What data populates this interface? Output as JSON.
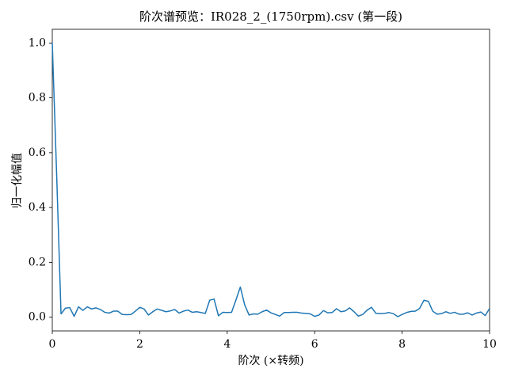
{
  "chart_data": {
    "type": "line",
    "title": "阶次谱预览：IR028_2_(1750rpm).csv  (第一段)",
    "x_label": "阶次 (×转频)",
    "y_label": "归一化幅值",
    "color": "#1f77b4",
    "x": [
      0,
      0.1,
      0.2,
      0.3,
      0.4,
      0.5,
      0.6,
      0.7,
      0.8,
      0.9,
      1,
      1.1,
      1.2,
      1.3,
      1.4,
      1.5,
      1.6,
      1.7,
      1.8,
      1.9,
      2,
      2.1,
      2.2,
      2.3,
      2.4,
      2.5,
      2.6,
      2.7,
      2.8,
      2.9,
      3,
      3.1,
      3.2,
      3.3,
      3.4,
      3.5,
      3.6,
      3.7,
      3.8,
      3.9,
      4,
      4.1,
      4.2,
      4.3,
      4.4,
      4.5,
      4.6,
      4.7,
      4.8,
      4.9,
      5,
      5.1,
      5.2,
      5.3,
      5.4,
      5.5,
      5.6,
      5.7,
      5.8,
      5.9,
      6,
      6.1,
      6.2,
      6.3,
      6.4,
      6.5,
      6.6,
      6.7,
      6.8,
      6.9,
      7,
      7.1,
      7.2,
      7.3,
      7.4,
      7.5,
      7.6,
      7.7,
      7.8,
      7.9,
      8,
      8.1,
      8.2,
      8.3,
      8.4,
      8.5,
      8.6,
      8.7,
      8.8,
      8.9,
      9,
      9.1,
      9.2,
      9.3,
      9.4,
      9.5,
      9.6,
      9.7,
      9.8,
      9.9,
      10
    ],
    "values": [
      1.0,
      0.52,
      0.012,
      0.033,
      0.035,
      0.003,
      0.038,
      0.025,
      0.038,
      0.03,
      0.034,
      0.028,
      0.018,
      0.015,
      0.022,
      0.022,
      0.01,
      0.009,
      0.01,
      0.022,
      0.036,
      0.03,
      0.008,
      0.02,
      0.03,
      0.025,
      0.02,
      0.023,
      0.028,
      0.015,
      0.022,
      0.026,
      0.018,
      0.02,
      0.017,
      0.014,
      0.062,
      0.066,
      0.005,
      0.018,
      0.017,
      0.018,
      0.063,
      0.11,
      0.045,
      0.008,
      0.012,
      0.011,
      0.02,
      0.026,
      0.016,
      0.01,
      0.004,
      0.017,
      0.017,
      0.018,
      0.018,
      0.015,
      0.014,
      0.012,
      0.003,
      0.008,
      0.024,
      0.016,
      0.017,
      0.031,
      0.02,
      0.023,
      0.034,
      0.02,
      0.004,
      0.01,
      0.026,
      0.036,
      0.014,
      0.013,
      0.014,
      0.017,
      0.013,
      0.002,
      0.01,
      0.017,
      0.021,
      0.022,
      0.032,
      0.062,
      0.058,
      0.022,
      0.011,
      0.013,
      0.02,
      0.014,
      0.018,
      0.011,
      0.011,
      0.016,
      0.008,
      0.015,
      0.019,
      0.006,
      0.032
    ],
    "xlim": [
      0,
      10
    ],
    "xticks": [
      0,
      2,
      4,
      6,
      8,
      10
    ],
    "ylim": [
      -0.05,
      1.05
    ],
    "yticks": [
      {
        "value": 0,
        "label": "0.0"
      },
      {
        "value": 0.2,
        "label": "0.2"
      },
      {
        "value": 0.4,
        "label": "0.4"
      },
      {
        "value": 0.6,
        "label": "0.6"
      },
      {
        "value": 0.8,
        "label": "0.8"
      },
      {
        "value": 1,
        "label": "1.0"
      }
    ]
  }
}
